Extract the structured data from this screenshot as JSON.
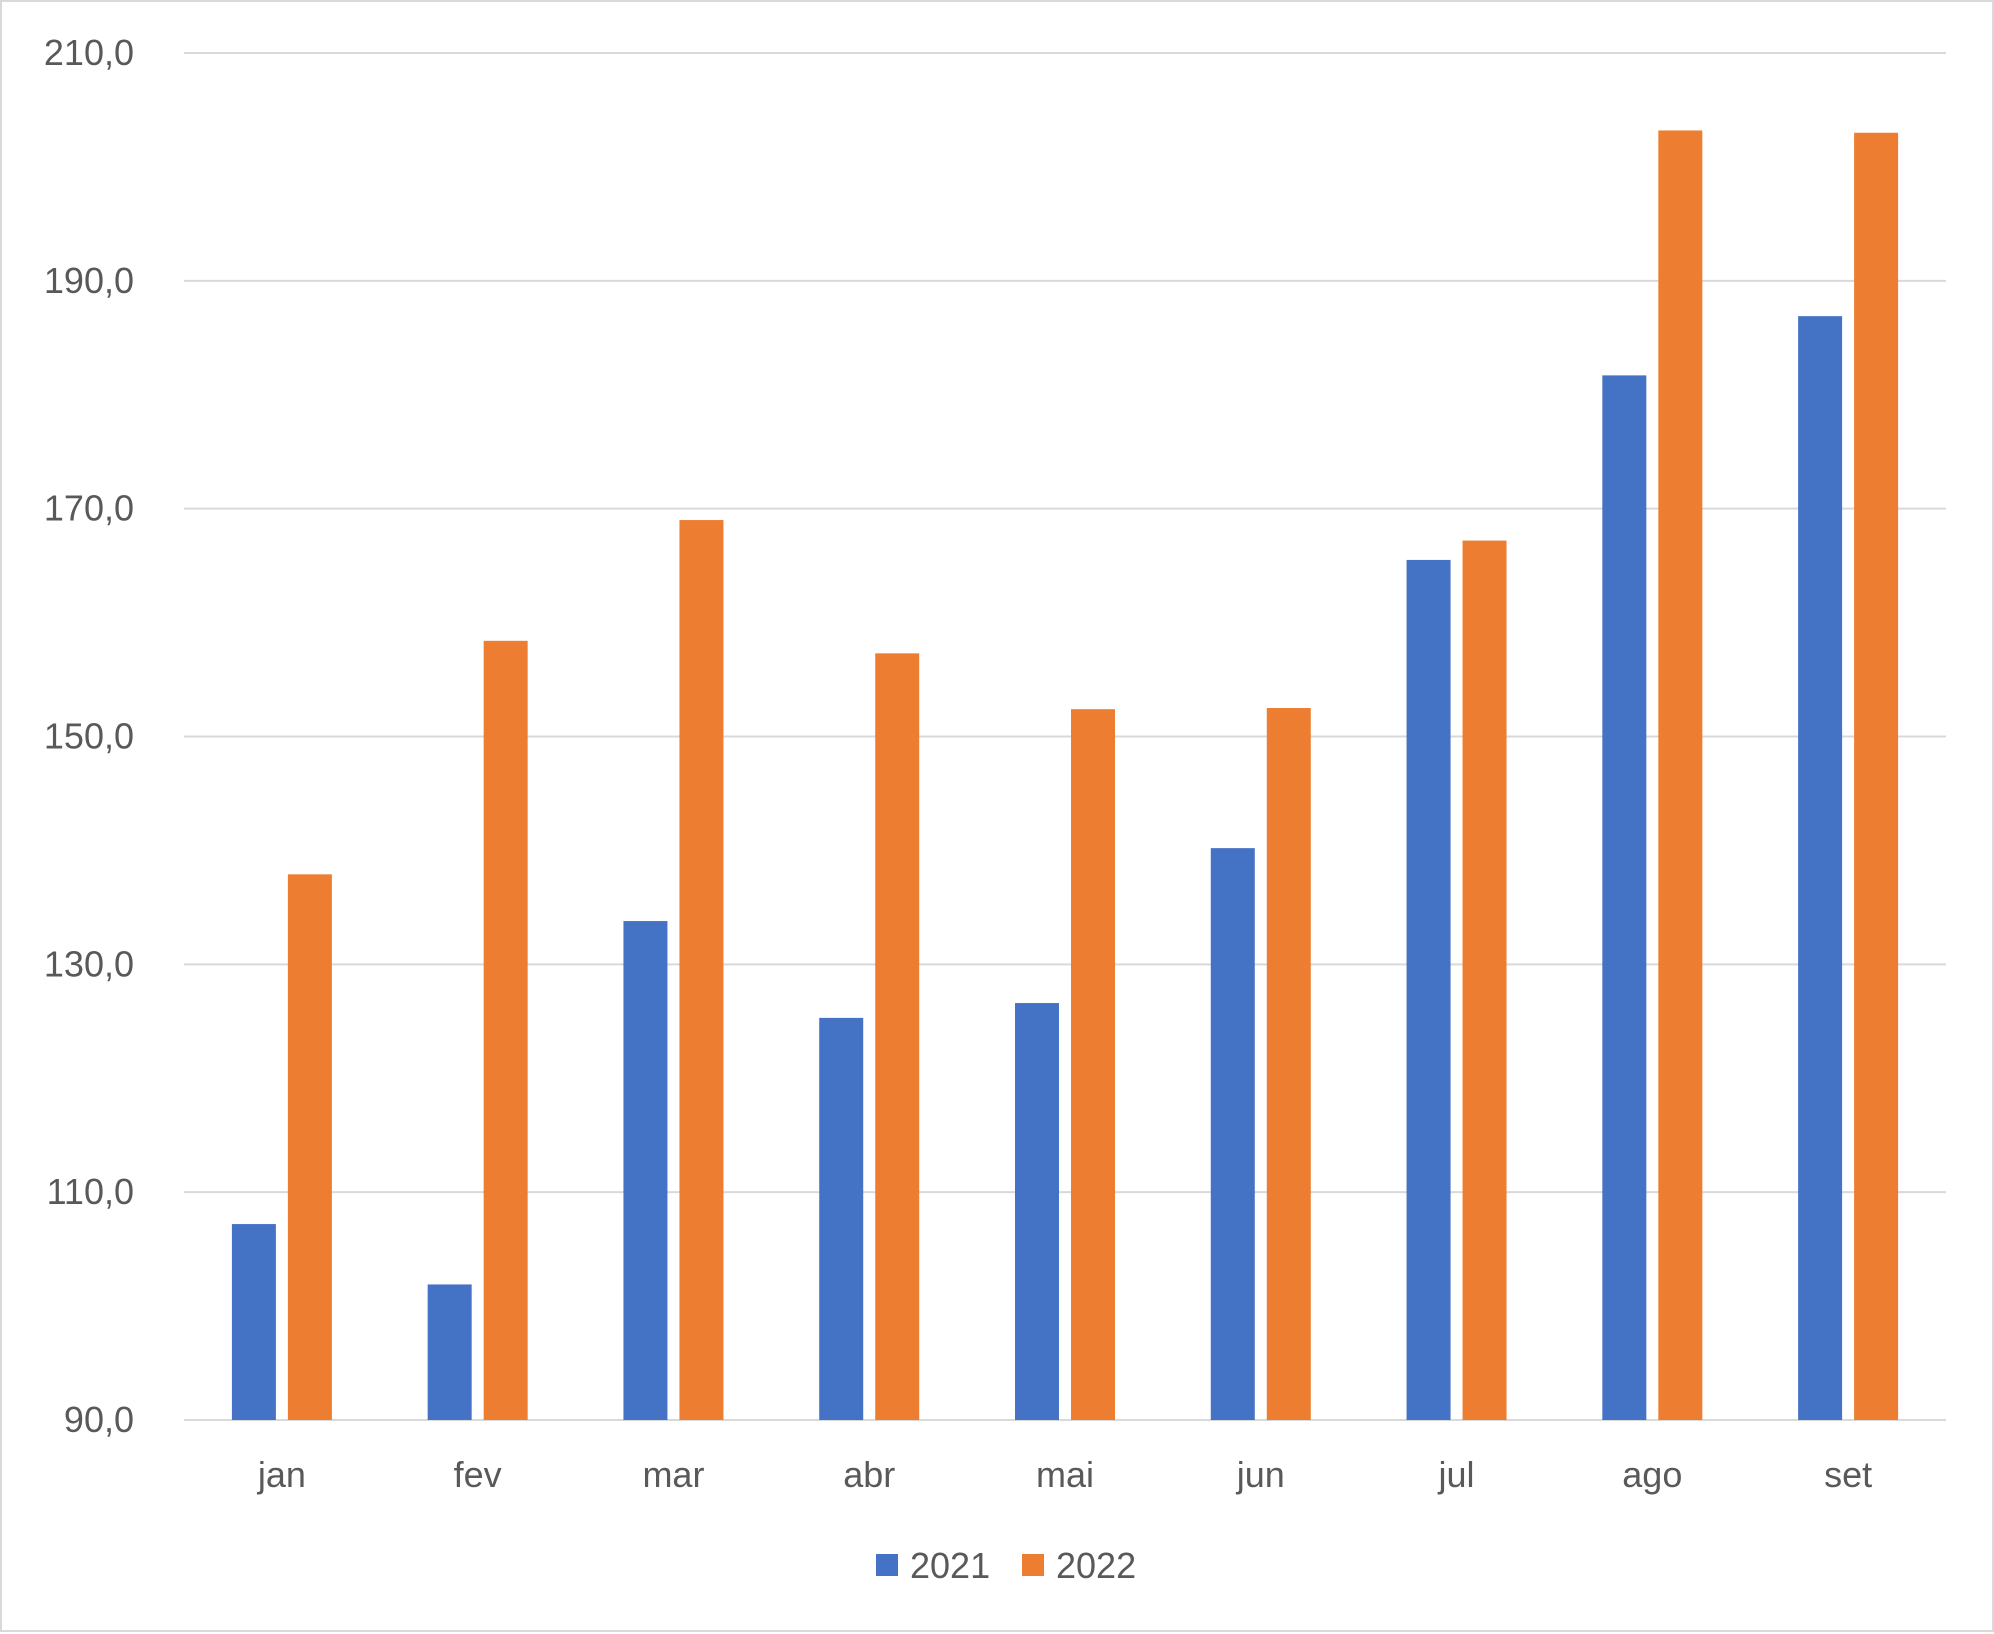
{
  "chart_data": {
    "type": "bar",
    "title": "",
    "xlabel": "",
    "ylabel": "",
    "categories": [
      "jan",
      "fev",
      "mar",
      "abr",
      "mai",
      "jun",
      "jul",
      "ago",
      "set"
    ],
    "series": [
      {
        "name": "2021",
        "color": "#4472c4",
        "values": [
          107.2,
          101.9,
          133.8,
          125.3,
          126.6,
          140.2,
          165.5,
          181.7,
          186.9
        ]
      },
      {
        "name": "2022",
        "color": "#ed7d31",
        "values": [
          137.9,
          158.4,
          169.0,
          157.3,
          152.4,
          152.5,
          167.2,
          203.2,
          203.0
        ]
      }
    ],
    "ylim": [
      90,
      210
    ],
    "yticks": [
      "90,0",
      "110,0",
      "130,0",
      "150,0",
      "170,0",
      "190,0",
      "210,0"
    ],
    "grid": true,
    "gridline_color": "#d9d9d9",
    "legend_position": "bottom"
  }
}
